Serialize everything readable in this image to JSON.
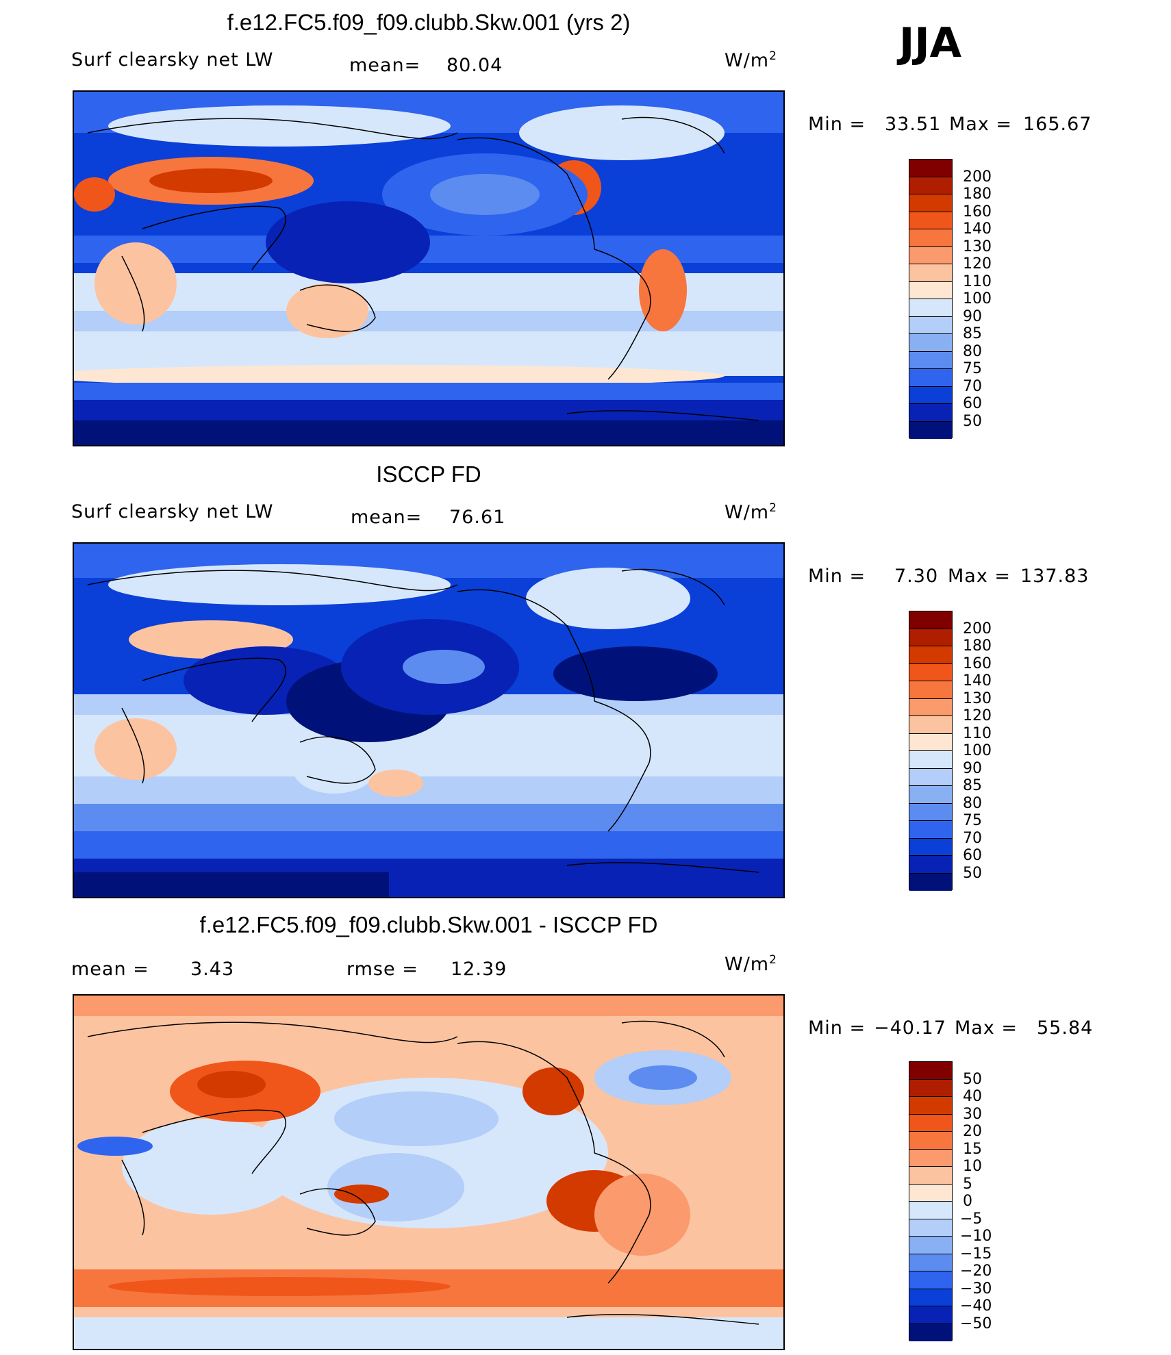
{
  "season": "JJA",
  "chart_data": [
    {
      "type": "heatmap",
      "title": "f.e12.FC5.f09_f09.clubb.Skw.001 (yrs 2)",
      "variable": "Surf clearsky net LW",
      "stat_label": "mean=",
      "stat_value": "80.04",
      "units_base": "W/m",
      "units_exp": "2",
      "min_label": "Min =",
      "min_value": "33.51",
      "max_label": "Max =",
      "max_value": "165.67",
      "colorbar_levels": [
        "200",
        "180",
        "160",
        "140",
        "130",
        "120",
        "110",
        "100",
        "90",
        "85",
        "80",
        "75",
        "70",
        "60",
        "50"
      ],
      "colorbar_colors": [
        "#800000",
        "#b01e00",
        "#d33a00",
        "#f0561a",
        "#f7763e",
        "#fb9a6c",
        "#fcc3a1",
        "#fde7d3",
        "#d7e7fb",
        "#b2cef9",
        "#8ab0f4",
        "#5c8cef",
        "#2f64ee",
        "#0a3fd8",
        "#0722b4",
        "#00127a"
      ]
    },
    {
      "type": "heatmap",
      "title": "ISCCP FD",
      "variable": "Surf clearsky net LW",
      "stat_label": "mean=",
      "stat_value": "76.61",
      "units_base": "W/m",
      "units_exp": "2",
      "min_label": "Min =",
      "min_value": "7.30",
      "max_label": "Max =",
      "max_value": "137.83",
      "colorbar_levels": [
        "200",
        "180",
        "160",
        "140",
        "130",
        "120",
        "110",
        "100",
        "90",
        "85",
        "80",
        "75",
        "70",
        "60",
        "50"
      ],
      "colorbar_colors": [
        "#800000",
        "#b01e00",
        "#d33a00",
        "#f0561a",
        "#f7763e",
        "#fb9a6c",
        "#fcc3a1",
        "#fde7d3",
        "#d7e7fb",
        "#b2cef9",
        "#8ab0f4",
        "#5c8cef",
        "#2f64ee",
        "#0a3fd8",
        "#0722b4",
        "#00127a"
      ]
    },
    {
      "type": "heatmap",
      "title": "f.e12.FC5.f09_f09.clubb.Skw.001 - ISCCP FD",
      "mean_label": "mean =",
      "mean_value": "3.43",
      "rmse_label": "rmse =",
      "rmse_value": "12.39",
      "units_base": "W/m",
      "units_exp": "2",
      "min_label": "Min =",
      "min_value": "−40.17",
      "max_label": "Max =",
      "max_value": "55.84",
      "colorbar_levels": [
        "50",
        "40",
        "30",
        "20",
        "15",
        "10",
        "5",
        "0",
        "−5",
        "−10",
        "−15",
        "−20",
        "−30",
        "−40",
        "−50"
      ],
      "colorbar_colors": [
        "#800000",
        "#b01e00",
        "#d33a00",
        "#f0561a",
        "#f7763e",
        "#fb9a6c",
        "#fcc3a1",
        "#fde7d3",
        "#d7e7fb",
        "#b2cef9",
        "#8ab0f4",
        "#5c8cef",
        "#2f64ee",
        "#0a3fd8",
        "#0722b4",
        "#00127a"
      ]
    }
  ]
}
